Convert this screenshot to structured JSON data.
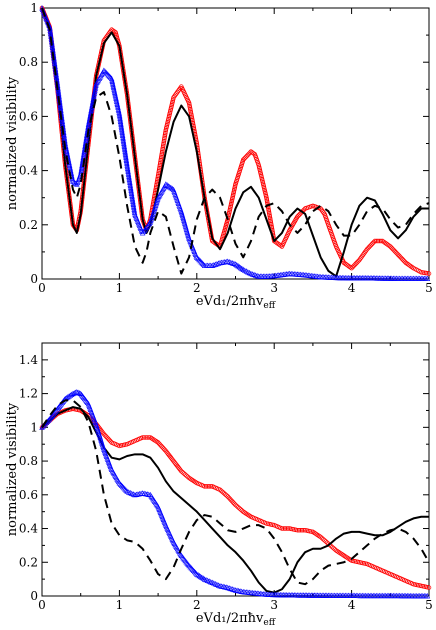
{
  "chart_data": [
    {
      "type": "line",
      "xlabel": "eVd₁/2πħv",
      "xlabel_sub": "eff",
      "ylabel": "normalized visibility",
      "xlim": [
        0,
        5
      ],
      "ylim": [
        0,
        1
      ],
      "xticks": [
        "0",
        "1",
        "2",
        "3",
        "4",
        "5"
      ],
      "yticks": [
        "0",
        "0.2",
        "0.4",
        "0.6",
        "0.8",
        "1"
      ],
      "grid": false,
      "series": [
        {
          "style": "red-open-circles",
          "color": "#ff0000",
          "x": [
            0,
            0.1,
            0.2,
            0.3,
            0.4,
            0.45,
            0.5,
            0.6,
            0.7,
            0.8,
            0.9,
            0.95,
            1.0,
            1.1,
            1.2,
            1.3,
            1.35,
            1.4,
            1.5,
            1.6,
            1.7,
            1.8,
            1.9,
            2.0,
            2.1,
            2.2,
            2.3,
            2.4,
            2.5,
            2.6,
            2.7,
            2.75,
            2.8,
            2.9,
            3.0,
            3.1,
            3.2,
            3.3,
            3.4,
            3.5,
            3.6,
            3.65,
            3.7,
            3.8,
            3.9,
            4.0,
            4.1,
            4.2,
            4.3,
            4.4,
            4.5,
            4.6,
            4.7,
            4.8,
            4.9,
            5.0
          ],
          "y": [
            1.0,
            0.93,
            0.7,
            0.42,
            0.2,
            0.18,
            0.25,
            0.5,
            0.75,
            0.88,
            0.92,
            0.91,
            0.86,
            0.68,
            0.45,
            0.22,
            0.18,
            0.22,
            0.38,
            0.55,
            0.67,
            0.71,
            0.65,
            0.5,
            0.3,
            0.14,
            0.12,
            0.22,
            0.35,
            0.44,
            0.47,
            0.46,
            0.42,
            0.3,
            0.14,
            0.12,
            0.18,
            0.23,
            0.26,
            0.27,
            0.26,
            0.24,
            0.2,
            0.12,
            0.06,
            0.04,
            0.07,
            0.11,
            0.14,
            0.14,
            0.12,
            0.09,
            0.06,
            0.04,
            0.025,
            0.02
          ]
        },
        {
          "style": "black-solid",
          "color": "#000000",
          "x": [
            0,
            0.1,
            0.2,
            0.3,
            0.4,
            0.45,
            0.5,
            0.6,
            0.7,
            0.8,
            0.9,
            1.0,
            1.1,
            1.2,
            1.3,
            1.35,
            1.4,
            1.5,
            1.6,
            1.7,
            1.8,
            1.9,
            2.0,
            2.1,
            2.2,
            2.3,
            2.4,
            2.5,
            2.6,
            2.7,
            2.8,
            2.9,
            3.0,
            3.1,
            3.2,
            3.3,
            3.4,
            3.5,
            3.6,
            3.7,
            3.8,
            3.9,
            4.0,
            4.1,
            4.2,
            4.3,
            4.4,
            4.5,
            4.6,
            4.7,
            4.8,
            4.9,
            5.0
          ],
          "y": [
            1.0,
            0.93,
            0.7,
            0.42,
            0.2,
            0.17,
            0.24,
            0.5,
            0.75,
            0.87,
            0.91,
            0.86,
            0.68,
            0.45,
            0.22,
            0.17,
            0.2,
            0.33,
            0.47,
            0.58,
            0.64,
            0.6,
            0.47,
            0.3,
            0.15,
            0.11,
            0.17,
            0.26,
            0.32,
            0.34,
            0.3,
            0.22,
            0.14,
            0.17,
            0.23,
            0.26,
            0.24,
            0.16,
            0.08,
            0.03,
            0.01,
            0.1,
            0.2,
            0.27,
            0.3,
            0.29,
            0.24,
            0.18,
            0.15,
            0.18,
            0.23,
            0.26,
            0.26
          ]
        },
        {
          "style": "blue-triangles",
          "color": "#0000ff",
          "x": [
            0,
            0.1,
            0.2,
            0.3,
            0.4,
            0.45,
            0.5,
            0.6,
            0.7,
            0.8,
            0.9,
            1.0,
            1.1,
            1.2,
            1.3,
            1.4,
            1.5,
            1.6,
            1.7,
            1.8,
            1.9,
            2.0,
            2.1,
            2.2,
            2.3,
            2.4,
            2.5,
            2.6,
            2.7,
            2.8,
            2.9,
            3.0,
            3.2,
            3.4,
            3.6,
            3.8,
            4.0,
            4.2,
            4.4,
            4.6,
            4.8,
            5.0
          ],
          "y": [
            1.0,
            0.93,
            0.72,
            0.5,
            0.36,
            0.35,
            0.39,
            0.57,
            0.72,
            0.77,
            0.74,
            0.61,
            0.42,
            0.24,
            0.17,
            0.21,
            0.3,
            0.35,
            0.33,
            0.25,
            0.15,
            0.08,
            0.05,
            0.05,
            0.06,
            0.065,
            0.055,
            0.035,
            0.02,
            0.01,
            0.01,
            0.012,
            0.02,
            0.015,
            0.008,
            0.005,
            0.004,
            0.004,
            0.003,
            0.002,
            0.002,
            0.002
          ]
        },
        {
          "style": "black-dashed",
          "color": "#000000",
          "x": [
            0,
            0.1,
            0.2,
            0.3,
            0.4,
            0.45,
            0.5,
            0.6,
            0.7,
            0.8,
            0.9,
            1.0,
            1.1,
            1.2,
            1.3,
            1.35,
            1.4,
            1.5,
            1.6,
            1.7,
            1.8,
            1.9,
            2.0,
            2.1,
            2.2,
            2.3,
            2.4,
            2.5,
            2.6,
            2.7,
            2.8,
            2.9,
            3.0,
            3.1,
            3.2,
            3.3,
            3.4,
            3.5,
            3.6,
            3.7,
            3.8,
            3.9,
            4.0,
            4.1,
            4.2,
            4.3,
            4.4,
            4.5,
            4.6,
            4.7,
            4.8,
            4.9,
            5.0
          ],
          "y": [
            1.0,
            0.92,
            0.7,
            0.48,
            0.33,
            0.3,
            0.35,
            0.55,
            0.67,
            0.69,
            0.6,
            0.45,
            0.27,
            0.12,
            0.06,
            0.1,
            0.17,
            0.25,
            0.23,
            0.12,
            0.02,
            0.08,
            0.22,
            0.3,
            0.33,
            0.3,
            0.22,
            0.13,
            0.08,
            0.14,
            0.23,
            0.27,
            0.28,
            0.25,
            0.2,
            0.17,
            0.2,
            0.25,
            0.27,
            0.25,
            0.2,
            0.16,
            0.16,
            0.2,
            0.25,
            0.27,
            0.26,
            0.22,
            0.19,
            0.2,
            0.24,
            0.27,
            0.28
          ]
        }
      ]
    },
    {
      "type": "line",
      "xlabel": "eVd₁/2πħv",
      "xlabel_sub": "eff",
      "ylabel": "normalized visibility",
      "xlim": [
        0,
        5
      ],
      "ylim": [
        0,
        1.5
      ],
      "xticks": [
        "0",
        "1",
        "2",
        "3",
        "4",
        "5"
      ],
      "yticks": [
        "0",
        "0.2",
        "0.4",
        "0.6",
        "0.8",
        "1",
        "1.2",
        "1.4"
      ],
      "grid": false,
      "series": [
        {
          "style": "red-open-circles",
          "color": "#ff0000",
          "x": [
            0,
            0.1,
            0.2,
            0.3,
            0.4,
            0.5,
            0.6,
            0.7,
            0.8,
            0.9,
            1.0,
            1.1,
            1.2,
            1.3,
            1.4,
            1.5,
            1.6,
            1.7,
            1.8,
            1.9,
            2.0,
            2.1,
            2.2,
            2.3,
            2.4,
            2.5,
            2.6,
            2.7,
            2.8,
            2.9,
            3.0,
            3.1,
            3.2,
            3.3,
            3.4,
            3.5,
            3.6,
            3.7,
            3.8,
            3.9,
            4.0,
            4.1,
            4.2,
            4.3,
            4.4,
            4.5,
            4.6,
            4.7,
            4.8,
            4.9,
            5.0
          ],
          "y": [
            1.0,
            1.04,
            1.08,
            1.1,
            1.11,
            1.1,
            1.07,
            1.02,
            0.96,
            0.91,
            0.89,
            0.9,
            0.92,
            0.94,
            0.94,
            0.91,
            0.86,
            0.8,
            0.74,
            0.7,
            0.67,
            0.65,
            0.65,
            0.63,
            0.59,
            0.54,
            0.5,
            0.47,
            0.45,
            0.43,
            0.42,
            0.4,
            0.4,
            0.39,
            0.39,
            0.38,
            0.35,
            0.31,
            0.27,
            0.24,
            0.21,
            0.2,
            0.19,
            0.17,
            0.15,
            0.13,
            0.11,
            0.09,
            0.07,
            0.06,
            0.05
          ]
        },
        {
          "style": "black-solid",
          "color": "#000000",
          "x": [
            0,
            0.1,
            0.2,
            0.3,
            0.4,
            0.5,
            0.6,
            0.7,
            0.8,
            0.9,
            1.0,
            1.1,
            1.2,
            1.3,
            1.4,
            1.5,
            1.6,
            1.7,
            1.8,
            1.9,
            2.0,
            2.1,
            2.2,
            2.3,
            2.4,
            2.5,
            2.6,
            2.7,
            2.8,
            2.9,
            3.0,
            3.1,
            3.2,
            3.3,
            3.4,
            3.5,
            3.6,
            3.7,
            3.8,
            3.9,
            4.0,
            4.1,
            4.2,
            4.3,
            4.4,
            4.5,
            4.6,
            4.7,
            4.8,
            4.9,
            5.0
          ],
          "y": [
            1.0,
            1.04,
            1.08,
            1.1,
            1.12,
            1.11,
            1.06,
            0.97,
            0.88,
            0.82,
            0.81,
            0.83,
            0.84,
            0.84,
            0.82,
            0.76,
            0.68,
            0.62,
            0.58,
            0.54,
            0.5,
            0.45,
            0.4,
            0.35,
            0.3,
            0.26,
            0.21,
            0.15,
            0.08,
            0.03,
            0.02,
            0.04,
            0.1,
            0.2,
            0.26,
            0.28,
            0.28,
            0.3,
            0.34,
            0.37,
            0.38,
            0.38,
            0.37,
            0.36,
            0.36,
            0.38,
            0.41,
            0.44,
            0.46,
            0.47,
            0.47
          ]
        },
        {
          "style": "blue-triangles",
          "color": "#0000ff",
          "x": [
            0,
            0.1,
            0.2,
            0.3,
            0.4,
            0.45,
            0.5,
            0.6,
            0.7,
            0.8,
            0.9,
            1.0,
            1.1,
            1.2,
            1.3,
            1.4,
            1.5,
            1.6,
            1.7,
            1.8,
            1.9,
            2.0,
            2.1,
            2.2,
            2.3,
            2.4,
            2.5,
            2.6,
            2.7,
            2.8,
            2.9,
            3.0,
            3.2,
            3.4,
            3.6,
            3.8,
            4.0,
            4.2,
            4.4,
            4.6,
            4.8,
            5.0
          ],
          "y": [
            1.0,
            1.05,
            1.11,
            1.17,
            1.2,
            1.21,
            1.2,
            1.14,
            1.02,
            0.87,
            0.75,
            0.67,
            0.62,
            0.6,
            0.61,
            0.6,
            0.53,
            0.42,
            0.32,
            0.24,
            0.18,
            0.13,
            0.1,
            0.08,
            0.06,
            0.05,
            0.035,
            0.025,
            0.02,
            0.015,
            0.01,
            0.008,
            0.006,
            0.005,
            0.004,
            0.003,
            0.003,
            0.002,
            0.002,
            0.002,
            0.001,
            0.001
          ]
        },
        {
          "style": "black-dashed",
          "color": "#000000",
          "x": [
            0,
            0.1,
            0.2,
            0.3,
            0.4,
            0.5,
            0.6,
            0.7,
            0.8,
            0.9,
            1.0,
            1.1,
            1.2,
            1.3,
            1.4,
            1.5,
            1.6,
            1.7,
            1.8,
            1.9,
            2.0,
            2.1,
            2.2,
            2.3,
            2.4,
            2.5,
            2.6,
            2.7,
            2.8,
            2.9,
            3.0,
            3.1,
            3.2,
            3.3,
            3.4,
            3.5,
            3.6,
            3.7,
            3.8,
            3.9,
            4.0,
            4.1,
            4.2,
            4.3,
            4.4,
            4.5,
            4.6,
            4.7,
            4.8,
            4.9,
            5.0
          ],
          "y": [
            1.0,
            1.07,
            1.13,
            1.16,
            1.16,
            1.12,
            1.03,
            0.86,
            0.6,
            0.43,
            0.36,
            0.33,
            0.32,
            0.28,
            0.21,
            0.13,
            0.1,
            0.17,
            0.28,
            0.38,
            0.45,
            0.48,
            0.47,
            0.43,
            0.39,
            0.38,
            0.4,
            0.42,
            0.42,
            0.4,
            0.34,
            0.26,
            0.16,
            0.08,
            0.07,
            0.1,
            0.15,
            0.18,
            0.19,
            0.2,
            0.22,
            0.26,
            0.3,
            0.34,
            0.37,
            0.39,
            0.4,
            0.38,
            0.34,
            0.28,
            0.2
          ]
        }
      ]
    }
  ]
}
